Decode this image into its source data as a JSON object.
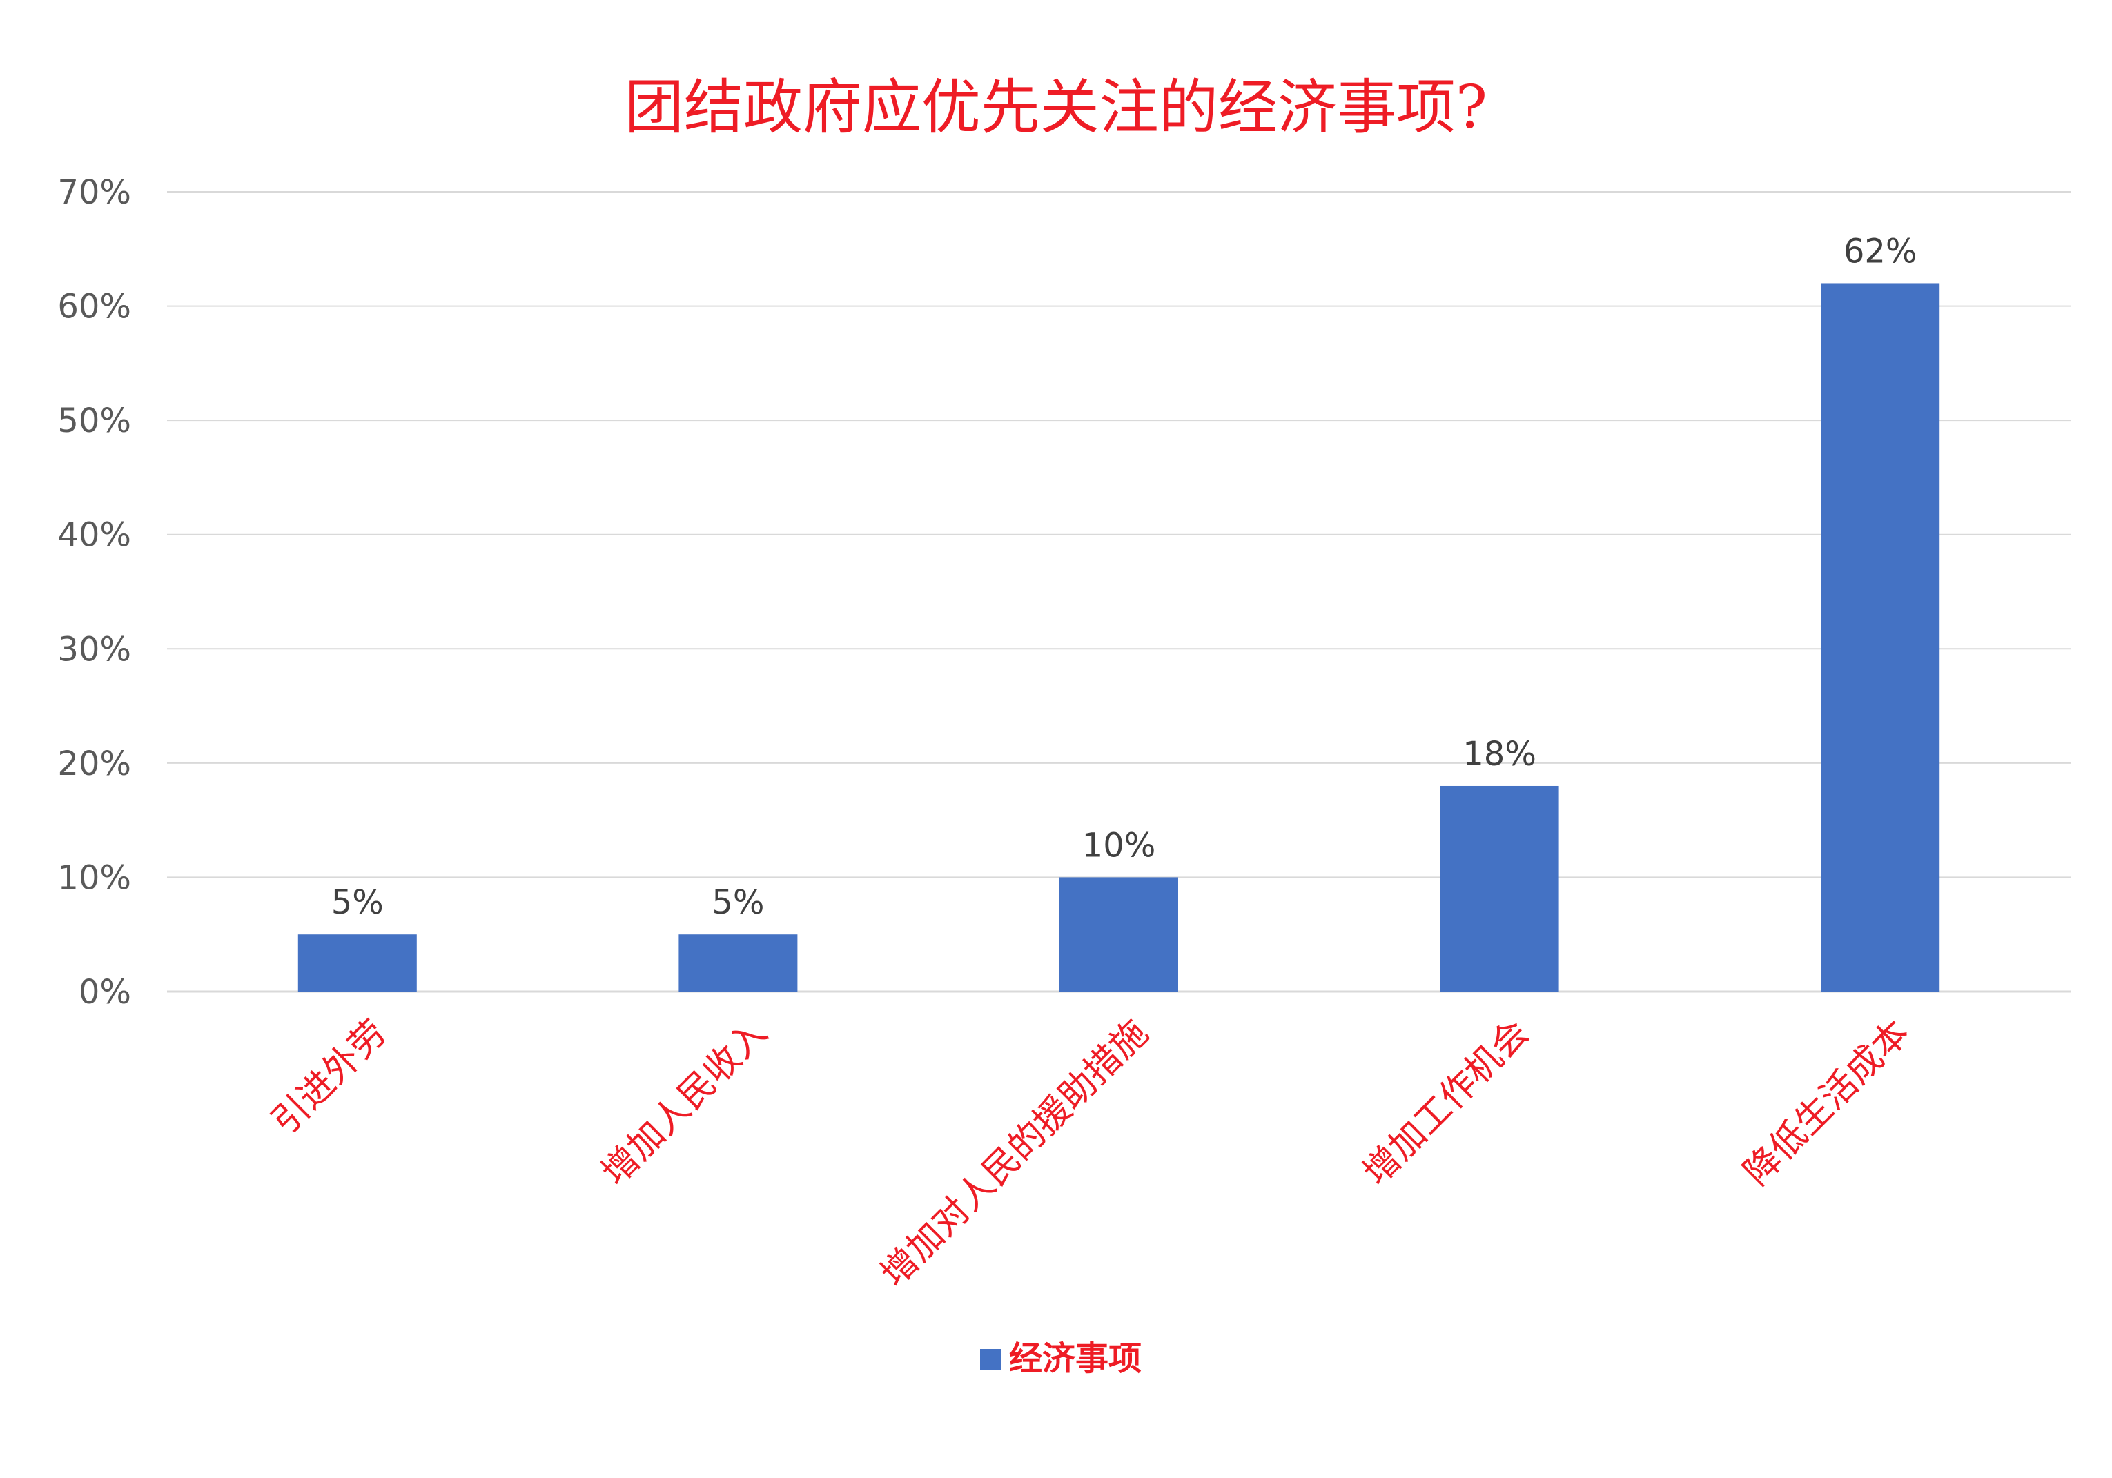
{
  "chart_data": {
    "type": "bar",
    "title": "团结政府应优先关注的经济事项?",
    "categories": [
      "引进外劳",
      "增加人民收入",
      "增加对人民的援助措施",
      "增加工作机会",
      "降低生活成本"
    ],
    "series": [
      {
        "name": "经济事项",
        "values": [
          5,
          5,
          10,
          18,
          62
        ],
        "data_labels": [
          "5%",
          "5%",
          "10%",
          "18%",
          "62%"
        ]
      }
    ],
    "y_ticks": [
      0,
      10,
      20,
      30,
      40,
      50,
      60,
      70
    ],
    "y_tick_labels": [
      "0%",
      "10%",
      "20%",
      "30%",
      "40%",
      "50%",
      "60%",
      "70%"
    ],
    "ylim": [
      0,
      70
    ],
    "grid": true,
    "legend_position": "bottom",
    "colors": {
      "bar": "#4472C4",
      "title": "#EE1C25",
      "category_label": "#EE1C25",
      "gridline": "#D9D9D9",
      "axis_text": "#595959",
      "data_label": "#404040"
    }
  }
}
